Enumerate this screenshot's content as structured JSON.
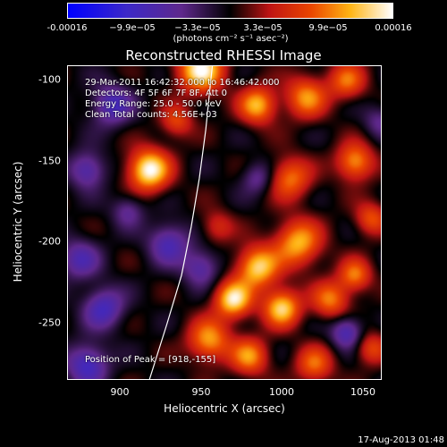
{
  "colorbar": {
    "ticks": [
      "-0.00016",
      "−9.9e−05",
      "−3.3e−05",
      "3.3e−05",
      "9.9e−05",
      "0.00016"
    ],
    "unit": "(photons cm⁻² s⁻¹ asec⁻²)"
  },
  "chart_data": {
    "type": "heatmap",
    "title": "Reconstructed RHESSI Image",
    "xlabel": "Heliocentric X (arcsec)",
    "ylabel": "Heliocentric Y (arcsec)",
    "xlim": [
      868,
      1062
    ],
    "ylim": [
      -285,
      -91
    ],
    "x_ticks": [
      900,
      950,
      1000,
      1050
    ],
    "y_ticks": [
      -100,
      -150,
      -200,
      -250
    ],
    "color_range": [
      -0.00016,
      0.00016
    ],
    "info_lines": [
      "29-Mar-2011 16:42:32.000 to 16:46:42.000",
      "Detectors: 4F 5F 6F 7F 8F, Att 0",
      "Energy Range: 25.0 - 50.0 keV",
      "Clean    Total counts: 4.56E+03"
    ],
    "peak_text": "Position of Peak = [918,-155]",
    "peak": [
      918,
      -155
    ],
    "limb_curve": [
      [
        918,
        -285
      ],
      [
        929,
        -250
      ],
      [
        938,
        -220
      ],
      [
        944,
        -190
      ],
      [
        949,
        -160
      ],
      [
        953,
        -130
      ],
      [
        956,
        -100
      ],
      [
        957,
        -91
      ]
    ],
    "blobs": [
      {
        "x": 918,
        "y": -155,
        "a": 1.0,
        "s": 9
      },
      {
        "x": 950,
        "y": -93,
        "a": 0.95,
        "s": 10
      },
      {
        "x": 985,
        "y": -115,
        "a": 0.75,
        "s": 8
      },
      {
        "x": 1015,
        "y": -110,
        "a": 0.65,
        "s": 9
      },
      {
        "x": 1040,
        "y": -100,
        "a": 0.55,
        "s": 8
      },
      {
        "x": 1005,
        "y": -160,
        "a": 0.6,
        "s": 9
      },
      {
        "x": 1045,
        "y": -150,
        "a": 0.7,
        "s": 8
      },
      {
        "x": 1055,
        "y": -185,
        "a": 0.5,
        "s": 7
      },
      {
        "x": 1010,
        "y": -200,
        "a": 0.75,
        "s": 10
      },
      {
        "x": 985,
        "y": -215,
        "a": 0.85,
        "s": 9
      },
      {
        "x": 970,
        "y": -235,
        "a": 0.9,
        "s": 8
      },
      {
        "x": 1000,
        "y": -240,
        "a": 0.85,
        "s": 8
      },
      {
        "x": 1030,
        "y": -235,
        "a": 0.6,
        "s": 8
      },
      {
        "x": 1045,
        "y": -220,
        "a": 0.6,
        "s": 7
      },
      {
        "x": 955,
        "y": -260,
        "a": 0.7,
        "s": 9
      },
      {
        "x": 980,
        "y": -270,
        "a": 0.65,
        "s": 8
      },
      {
        "x": 1020,
        "y": -275,
        "a": 0.55,
        "s": 8
      },
      {
        "x": 960,
        "y": -190,
        "a": 0.35,
        "s": 7
      },
      {
        "x": 935,
        "y": -125,
        "a": 0.45,
        "s": 7
      },
      {
        "x": 1055,
        "y": -265,
        "a": 0.45,
        "s": 7
      },
      {
        "x": 895,
        "y": -115,
        "a": -0.55,
        "s": 9
      },
      {
        "x": 880,
        "y": -155,
        "a": -0.5,
        "s": 8
      },
      {
        "x": 875,
        "y": -210,
        "a": -0.45,
        "s": 9
      },
      {
        "x": 890,
        "y": -240,
        "a": -0.55,
        "s": 9
      },
      {
        "x": 880,
        "y": -275,
        "a": -0.6,
        "s": 9
      },
      {
        "x": 930,
        "y": -200,
        "a": -0.5,
        "s": 9
      },
      {
        "x": 950,
        "y": -215,
        "a": -0.45,
        "s": 8
      },
      {
        "x": 1040,
        "y": -255,
        "a": -0.55,
        "s": 7
      },
      {
        "x": 985,
        "y": -160,
        "a": -0.35,
        "s": 7
      },
      {
        "x": 905,
        "y": -180,
        "a": -0.35,
        "s": 7
      },
      {
        "x": 1060,
        "y": -125,
        "a": -0.3,
        "s": 7
      }
    ]
  },
  "timestamp": "17-Aug-2013 01:48"
}
